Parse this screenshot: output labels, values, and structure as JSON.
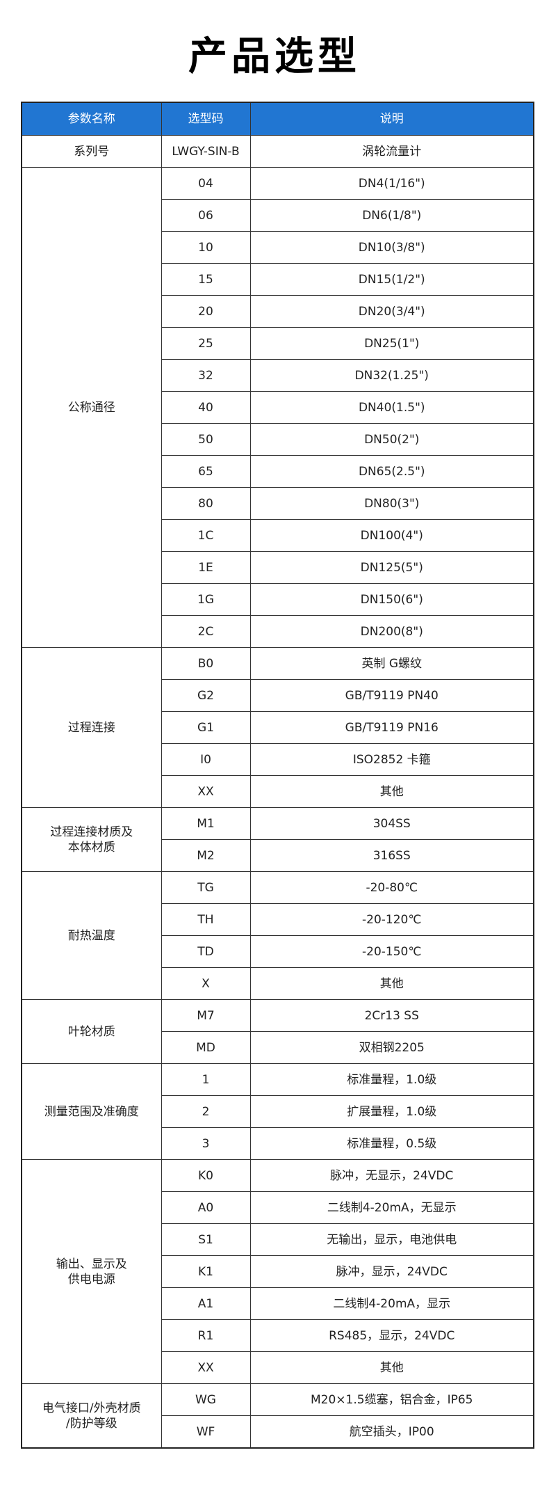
{
  "title": "产品选型",
  "header": {
    "param": "参数名称",
    "code": "选型码",
    "desc": "说明"
  },
  "groups": [
    {
      "name": "系列号",
      "rows": [
        [
          "LWGY-SIN-B",
          "涡轮流量计"
        ]
      ]
    },
    {
      "name": "公称通径",
      "rows": [
        [
          "04",
          "DN4(1/16\")"
        ],
        [
          "06",
          "DN6(1/8\")"
        ],
        [
          "10",
          "DN10(3/8\")"
        ],
        [
          "15",
          "DN15(1/2\")"
        ],
        [
          "20",
          "DN20(3/4\")"
        ],
        [
          "25",
          "DN25(1\")"
        ],
        [
          "32",
          "DN32(1.25\")"
        ],
        [
          "40",
          "DN40(1.5\")"
        ],
        [
          "50",
          "DN50(2\")"
        ],
        [
          "65",
          "DN65(2.5\")"
        ],
        [
          "80",
          "DN80(3\")"
        ],
        [
          "1C",
          "DN100(4\")"
        ],
        [
          "1E",
          "DN125(5\")"
        ],
        [
          "1G",
          "DN150(6\")"
        ],
        [
          "2C",
          "DN200(8\")"
        ]
      ]
    },
    {
      "name": "过程连接",
      "rows": [
        [
          "B0",
          "英制 G螺纹"
        ],
        [
          "G2",
          "GB/T9119 PN40"
        ],
        [
          "G1",
          "GB/T9119 PN16"
        ],
        [
          "I0",
          "ISO2852 卡箍"
        ],
        [
          "XX",
          "其他"
        ]
      ]
    },
    {
      "name": "过程连接材质及\n本体材质",
      "rows": [
        [
          "M1",
          "304SS"
        ],
        [
          "M2",
          "316SS"
        ]
      ]
    },
    {
      "name": "耐热温度",
      "rows": [
        [
          "TG",
          "-20-80℃"
        ],
        [
          "TH",
          "-20-120℃"
        ],
        [
          "TD",
          "-20-150℃"
        ],
        [
          "X",
          "其他"
        ]
      ]
    },
    {
      "name": "叶轮材质",
      "rows": [
        [
          "M7",
          "2Cr13 SS"
        ],
        [
          "MD",
          "双相钢2205"
        ]
      ]
    },
    {
      "name": "测量范围及准确度",
      "rows": [
        [
          "1",
          "标准量程，1.0级"
        ],
        [
          "2",
          "扩展量程，1.0级"
        ],
        [
          "3",
          "标准量程，0.5级"
        ]
      ]
    },
    {
      "name": "输出、显示及\n供电电源",
      "rows": [
        [
          "K0",
          "脉冲，无显示，24VDC"
        ],
        [
          "A0",
          "二线制4-20mA，无显示"
        ],
        [
          "S1",
          "无输出，显示，电池供电"
        ],
        [
          "K1",
          "脉冲，显示，24VDC"
        ],
        [
          "A1",
          "二线制4-20mA，显示"
        ],
        [
          "R1",
          "RS485，显示，24VDC"
        ],
        [
          "XX",
          "其他"
        ]
      ]
    },
    {
      "name": "电气接口/外壳材质\n/防护等级",
      "rows": [
        [
          "WG",
          "M20×1.5缆塞，铝合金，IP65"
        ],
        [
          "WF",
          "航空插头，IP00"
        ]
      ]
    }
  ],
  "colors": {
    "header_bg": "#2176d2",
    "header_text": "#ffffff",
    "border": "#333333"
  }
}
